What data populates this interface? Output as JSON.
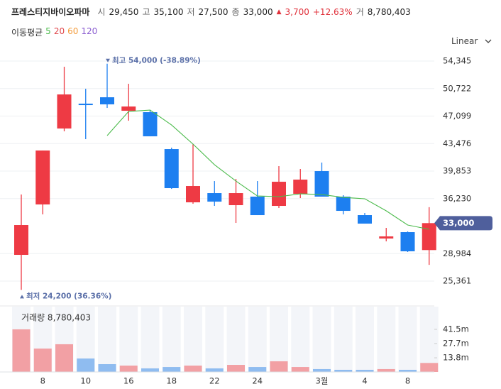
{
  "header": {
    "name": "프레스티지바이오파마",
    "stats": [
      {
        "label": "시",
        "value": "29,450"
      },
      {
        "label": "고",
        "value": "35,100"
      },
      {
        "label": "저",
        "value": "27,500"
      },
      {
        "label": "종",
        "value": "33,000"
      }
    ],
    "change": "3,700",
    "change_pct": "+12.63%",
    "volume_label": "거",
    "volume": "8,780,403",
    "scale_menu": "Linear"
  },
  "chart_data": {
    "type": "candlestick",
    "categories": [
      null,
      "8",
      null,
      "10",
      null,
      "16",
      null,
      "18",
      null,
      "22",
      null,
      "24",
      null,
      null,
      "3월",
      null,
      "4",
      null,
      "8",
      null
    ],
    "ohlc": {
      "open": [
        28820,
        35458,
        45462,
        48735,
        49577,
        47800,
        47613,
        42751,
        35739,
        36954,
        35365,
        36487,
        35271,
        36861,
        39853,
        36487,
        34056,
        30970,
        31811,
        29450
      ],
      "high": [
        36767,
        42564,
        53597,
        50698,
        54000,
        51353,
        47894,
        42938,
        43406,
        38543,
        38825,
        38543,
        40507,
        40133,
        40974,
        36674,
        34335,
        32373,
        31904,
        35100
      ],
      "low": [
        24200,
        34149,
        45089,
        44060,
        48174,
        46491,
        44434,
        37515,
        35552,
        35271,
        33027,
        34056,
        34990,
        36300,
        36487,
        34149,
        32934,
        30596,
        29194,
        27500
      ],
      "close": [
        32747,
        42564,
        49950,
        48548,
        48642,
        48361,
        44434,
        37609,
        37889,
        35832,
        36954,
        34056,
        38450,
        38731,
        36487,
        34616,
        32934,
        31250,
        29287,
        33000
      ],
      "up_color": "#ee3a44",
      "down_color": "#1d7ff0"
    },
    "moving_average": {
      "label": "이동평균",
      "series": [
        {
          "name": "5",
          "color": "#4cbb4c",
          "values": [
            null,
            null,
            null,
            null,
            44528,
            47706,
            47894,
            45930,
            43406,
            40694,
            38544,
            36580,
            36487,
            36861,
            36767,
            36393,
            36206,
            34616,
            32747,
            32186
          ]
        },
        {
          "name": "20",
          "color": "#e0474c"
        },
        {
          "name": "60",
          "color": "#f39c3c"
        },
        {
          "name": "120",
          "color": "#8a5cd0"
        }
      ]
    },
    "ylim": [
      22650,
      56780
    ],
    "yticks": [
      {
        "value": 54345,
        "label": "54,345"
      },
      {
        "value": 50722,
        "label": "50,722"
      },
      {
        "value": 47099,
        "label": "47,099"
      },
      {
        "value": 43476,
        "label": "43,476"
      },
      {
        "value": 39853,
        "label": "39,853"
      },
      {
        "value": 36230,
        "label": "36,230"
      },
      {
        "value": 28984,
        "label": "28,984"
      },
      {
        "value": 25361,
        "label": "25,361"
      }
    ],
    "grid": true,
    "last_price": {
      "value": 33000,
      "label": "33,000"
    },
    "annotations": [
      {
        "text": "최고 54,000 (-38.89%)",
        "value": 54000,
        "index": 4,
        "kind": "max"
      },
      {
        "text": "최저 24,200 (36.36%)",
        "value": 24200,
        "index": 0,
        "kind": "min"
      }
    ],
    "volume": {
      "title": "거래량 8,780,403",
      "values": [
        41500000,
        22800000,
        27000000,
        13100000,
        7600000,
        6200000,
        3500000,
        4800000,
        6200000,
        3500000,
        6900000,
        4800000,
        10400000,
        4800000,
        2800000,
        2100000,
        2100000,
        2800000,
        2100000,
        8780403
      ],
      "up_color": "#f2a0a4",
      "down_color": "#8fbcf0",
      "ylim": [
        0,
        63600000
      ],
      "yticks": [
        {
          "value": 41500000,
          "label": "41.5m"
        },
        {
          "value": 27700000,
          "label": "27.7m"
        },
        {
          "value": 13800000,
          "label": "13.8m"
        }
      ]
    }
  }
}
